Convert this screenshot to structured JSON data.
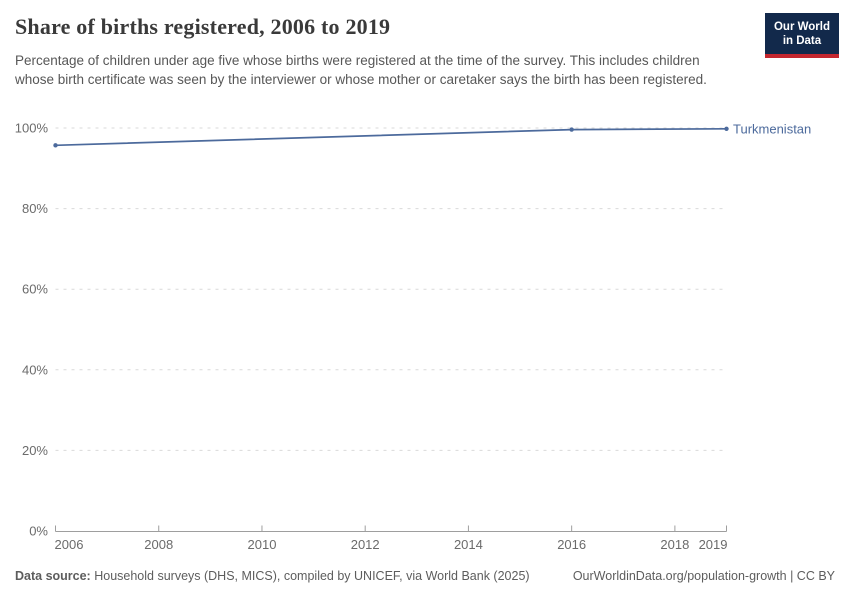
{
  "header": {
    "title": "Share of births registered, 2006 to 2019",
    "subtitle": "Percentage of children under age five whose births were registered at the time of the survey. This includes children whose birth certificate was seen by the interviewer or whose mother or caretaker says the birth has been registered.",
    "logo": {
      "line1": "Our World",
      "line2": "in Data",
      "bg_color": "#12294B",
      "accent_color": "#C4262E"
    }
  },
  "chart_data": {
    "type": "line",
    "title": "Share of births registered, 2006 to 2019",
    "xlabel": "",
    "ylabel": "",
    "xlim": [
      2006,
      2019
    ],
    "ylim": [
      0,
      100
    ],
    "x_ticks": [
      2006,
      2008,
      2010,
      2012,
      2014,
      2016,
      2018,
      2019
    ],
    "y_ticks": [
      0,
      20,
      40,
      60,
      80,
      100
    ],
    "y_tick_format": "{}%",
    "grid": "horizontal-dashed",
    "legend_position": "end-of-line-label",
    "series": [
      {
        "name": "Turkmenistan",
        "color": "#4C6A9C",
        "points": [
          {
            "x": 2006,
            "y": 95.7
          },
          {
            "x": 2016,
            "y": 99.6
          },
          {
            "x": 2019,
            "y": 99.8
          }
        ]
      }
    ]
  },
  "footer": {
    "data_source_label": "Data source:",
    "data_source_text": "Household surveys (DHS, MICS), compiled by UNICEF, via World Bank (2025)",
    "attribution": "OurWorldinData.org/population-growth | CC BY"
  }
}
